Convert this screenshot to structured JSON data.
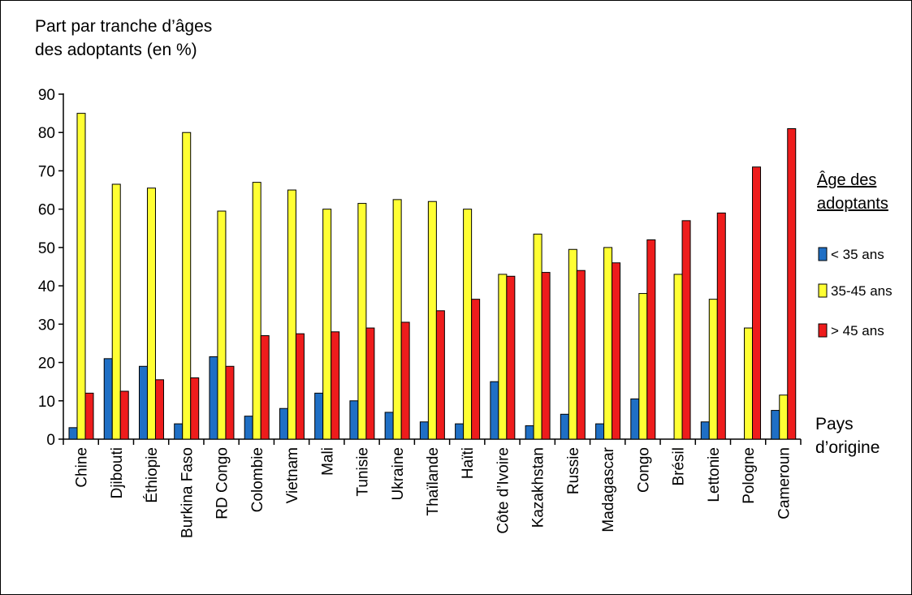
{
  "chart_data": {
    "type": "bar",
    "ylabel_lines": [
      "Part par tranche d’âges",
      "des adoptants (en %)"
    ],
    "xlabel_lines": [
      "Pays",
      "d’origine"
    ],
    "ylim": [
      0,
      90
    ],
    "yticks": [
      0,
      10,
      20,
      30,
      40,
      50,
      60,
      70,
      80,
      90
    ],
    "grid": false,
    "legend_position": "right",
    "legend_title_lines": [
      "Âge des",
      "adoptants"
    ],
    "categories": [
      "Chine",
      "Djibouti",
      "Éthiopie",
      "Burkina Faso",
      "RD Congo",
      "Colombie",
      "Vietnam",
      "Mali",
      "Tunisie",
      "Ukraine",
      "Thaïlande",
      "Haïti",
      "Côte d’Ivoire",
      "Kazakhstan",
      "Russie",
      "Madagascar",
      "Congo",
      "Brésil",
      "Lettonie",
      "Pologne",
      "Cameroun"
    ],
    "series": [
      {
        "name": "< 35 ans",
        "color": "#1f6fc5",
        "values": [
          3,
          21,
          19,
          4,
          21.5,
          6,
          8,
          12,
          10,
          7,
          4.5,
          4,
          15,
          3.5,
          6.5,
          4,
          10.5,
          0,
          4.5,
          0,
          7.5
        ]
      },
      {
        "name": "35-45 ans",
        "color": "#ffff33",
        "values": [
          85,
          66.5,
          65.5,
          80,
          59.5,
          67,
          65,
          60,
          61.5,
          62.5,
          62,
          60,
          43,
          53.5,
          49.5,
          50,
          38,
          43,
          36.5,
          29,
          11.5
        ]
      },
      {
        "name": "> 45 ans",
        "color": "#ee1c1c",
        "values": [
          12,
          12.5,
          15.5,
          16,
          19,
          27,
          27.5,
          28,
          29,
          30.5,
          33.5,
          36.5,
          42.5,
          43.5,
          44,
          46,
          52,
          57,
          59,
          71,
          81
        ]
      }
    ]
  }
}
